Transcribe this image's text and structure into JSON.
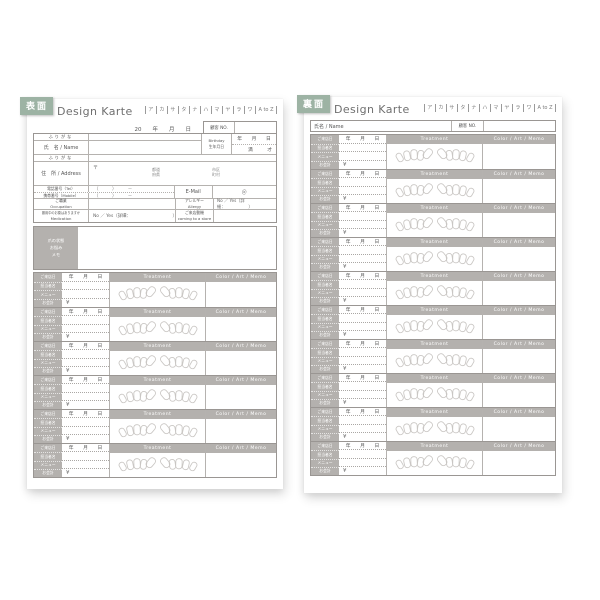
{
  "shared": {
    "title": "Design Karte",
    "index_tabs": [
      "ア",
      "カ",
      "サ",
      "タ",
      "ナ",
      "ハ",
      "マ",
      "ヤ",
      "ラ",
      "ワ",
      "A to Z"
    ],
    "treatment_row": {
      "labels": [
        "ご来店日",
        "担当者名",
        "メニュー",
        "お会計"
      ],
      "date_text": "年　　月　　日",
      "yen": "¥",
      "treatment_header": "Treatment",
      "color_header": "Color / Art / Memo"
    }
  },
  "left_page": {
    "badge": "表面",
    "date_line": "20　　年　　月　　日",
    "customer_no_label": "顧客 NO.",
    "form": {
      "furigana_label": "ふりがな",
      "name_label": "氏　名 / Name",
      "birthday_label_en": "Birthday",
      "birthday_label_jp": "生年月日",
      "birthday_date": "年　　月　　日",
      "age_text": "満　　　才",
      "furigana2_label": "ふりがな",
      "address_label": "住　所 / Address",
      "postal_mark": "〒",
      "prefecture_hint": "都道府県",
      "city_hint": "市区町村",
      "tel_label": "電話番号（Tel）",
      "mobile_label": "携帯番号（Mobile）",
      "tel_format": "（　　　）　　　－",
      "mobile_format": "（　　　）　　　－",
      "email_label": "E-Mail",
      "email_hint": "＠",
      "occupation_label_jp": "ご職業",
      "occupation_label_en": "Occupation",
      "allergy_label_jp": "アレルギー",
      "allergy_label_en": "Allergy",
      "allergy_value": "No ／ Yes（詳細：　　　　　　）",
      "medication_label_jp": "服用中のお薬はありますか",
      "medication_label_en": "Medication",
      "medication_value": "No ／ Yes（詳細：　　　　　　　　　　）",
      "visit_label_jp": "ご来店動機",
      "visit_label_en": "coming to a store"
    },
    "memo_label_lines": [
      "爪の状態",
      "お悩み",
      "メモ"
    ],
    "treatment_rows": 6
  },
  "right_page": {
    "badge": "裏面",
    "name_label": "氏名 / Name",
    "customer_no_label": "顧客 NO.",
    "treatment_rows": 10
  },
  "colors": {
    "badge_green": "#9db3a4",
    "header_gray": "#b4b1ae",
    "border_dark": "#9a9693",
    "border_light": "#b5b2af"
  }
}
